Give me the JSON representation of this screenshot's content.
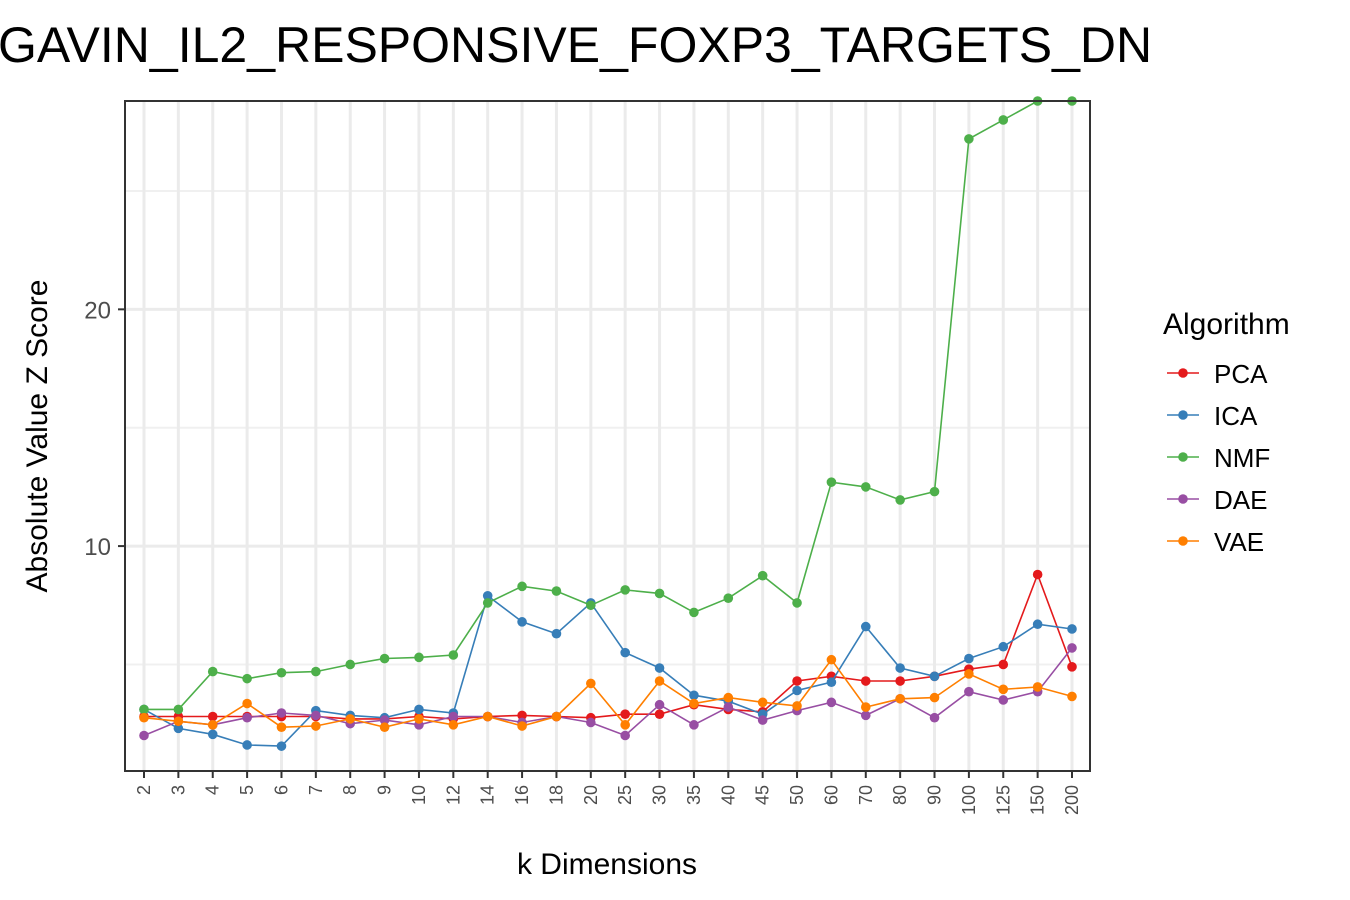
{
  "chart_data": {
    "type": "line",
    "title": "GAVIN_IL2_RESPONSIVE_FOXP3_TARGETS_DN",
    "xlabel": "k Dimensions",
    "ylabel": "Absolute Value Z Score",
    "categories": [
      "2",
      "3",
      "4",
      "5",
      "6",
      "7",
      "8",
      "9",
      "10",
      "12",
      "14",
      "16",
      "18",
      "20",
      "25",
      "30",
      "35",
      "40",
      "45",
      "50",
      "60",
      "70",
      "80",
      "90",
      "100",
      "125",
      "150",
      "200"
    ],
    "ylim": [
      0.5,
      28.8
    ],
    "yticks": [
      10,
      20
    ],
    "grid": true,
    "legend": {
      "title": "Algorithm",
      "position": "right"
    },
    "series": [
      {
        "name": "PCA",
        "color": "#E41A1C",
        "values": [
          2.8,
          2.8,
          2.8,
          2.8,
          2.8,
          2.8,
          2.7,
          2.7,
          2.8,
          2.7,
          2.8,
          2.85,
          2.8,
          2.75,
          2.9,
          2.9,
          3.3,
          3.1,
          3.0,
          4.3,
          4.5,
          4.3,
          4.3,
          4.5,
          4.8,
          5.0,
          8.8,
          4.9
        ]
      },
      {
        "name": "ICA",
        "color": "#377EB8",
        "values": [
          3.1,
          2.3,
          2.05,
          1.6,
          1.55,
          3.05,
          2.85,
          2.75,
          3.1,
          2.95,
          7.9,
          6.8,
          6.3,
          7.6,
          5.5,
          4.85,
          3.7,
          3.45,
          2.9,
          3.9,
          4.25,
          6.6,
          4.85,
          4.5,
          5.25,
          5.75,
          6.7,
          6.5
        ]
      },
      {
        "name": "NMF",
        "color": "#4DAF4A",
        "values": [
          3.1,
          3.1,
          4.7,
          4.4,
          4.65,
          4.7,
          5.0,
          5.25,
          5.3,
          5.4,
          7.6,
          8.3,
          8.1,
          7.5,
          8.15,
          8.0,
          7.2,
          7.8,
          8.75,
          7.6,
          12.7,
          12.5,
          11.95,
          12.3,
          27.2,
          28.0,
          28.8,
          28.8
        ]
      },
      {
        "name": "DAE",
        "color": "#984EA3",
        "values": [
          2.0,
          2.6,
          2.45,
          2.75,
          2.95,
          2.85,
          2.5,
          2.65,
          2.45,
          2.8,
          2.8,
          2.55,
          2.8,
          2.55,
          2.0,
          3.3,
          2.45,
          3.2,
          2.65,
          3.05,
          3.4,
          2.85,
          3.55,
          2.75,
          3.85,
          3.5,
          3.85,
          5.7
        ]
      },
      {
        "name": "VAE",
        "color": "#FF7F00",
        "values": [
          2.75,
          2.6,
          2.45,
          3.35,
          2.35,
          2.4,
          2.7,
          2.35,
          2.7,
          2.45,
          2.8,
          2.4,
          2.8,
          4.2,
          2.45,
          4.3,
          3.35,
          3.6,
          3.4,
          3.25,
          5.2,
          3.2,
          3.55,
          3.6,
          4.6,
          3.95,
          4.05,
          3.65
        ]
      }
    ]
  }
}
